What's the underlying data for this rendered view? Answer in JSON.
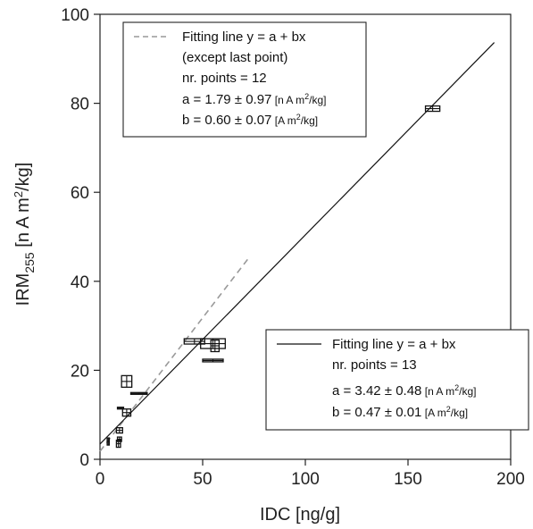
{
  "chart_data": {
    "type": "scatter",
    "xlabel": "IDC [ng/g]",
    "ylabel": {
      "prefix": "IRM",
      "sub": "255",
      "suffix_before_sup": " [n A m",
      "sup": "2",
      "suffix_after_sup": "/kg]"
    },
    "xlim": [
      0,
      200
    ],
    "ylim": [
      0,
      100
    ],
    "x_ticks": [
      0,
      50,
      100,
      150,
      200
    ],
    "y_ticks": [
      0,
      20,
      40,
      60,
      80,
      100
    ],
    "grid": false,
    "points": [
      {
        "x": 4,
        "y": 4,
        "xerr": 0.5,
        "yerr": 0.8
      },
      {
        "x": 9,
        "y": 3.5,
        "xerr": 1,
        "yerr": 0.8
      },
      {
        "x": 9.5,
        "y": 4.5,
        "xerr": 1,
        "yerr": 0.5
      },
      {
        "x": 9.5,
        "y": 6.5,
        "xerr": 1.5,
        "yerr": 0.6
      },
      {
        "x": 10,
        "y": 11.5,
        "xerr": 1.5,
        "yerr": 0.2
      },
      {
        "x": 13,
        "y": 10.5,
        "xerr": 2,
        "yerr": 0.8
      },
      {
        "x": 13,
        "y": 17.5,
        "xerr": 2.5,
        "yerr": 1.3
      },
      {
        "x": 19,
        "y": 14.8,
        "xerr": 4,
        "yerr": 0.2
      },
      {
        "x": 46,
        "y": 26.5,
        "xerr": 5,
        "yerr": 0.6
      },
      {
        "x": 55,
        "y": 26,
        "xerr": 6,
        "yerr": 1.1
      },
      {
        "x": 55,
        "y": 22.2,
        "xerr": 5,
        "yerr": 0.3
      },
      {
        "x": 56,
        "y": 25.5,
        "xerr": 2,
        "yerr": 1.3
      },
      {
        "x": 162,
        "y": 78.8,
        "xerr": 3.5,
        "yerr": 0.6
      }
    ],
    "fits": [
      {
        "name": "Fitting line y = a + bx (except last point)",
        "style": "dashed",
        "color": "#999999",
        "a": 1.79,
        "b": 0.6,
        "x_range": [
          0,
          73
        ]
      },
      {
        "name": "Fitting line y = a + bx",
        "style": "solid",
        "color": "#111111",
        "a": 3.42,
        "b": 0.47,
        "x_range": [
          0,
          192
        ]
      }
    ],
    "legend1": {
      "line1": "Fitting line y = a + bx",
      "line2": "(except last point)",
      "line3": "nr. points = 12",
      "a_text": "a = 1.79 ± 0.97",
      "a_unit_pre": " [n A m",
      "a_unit_sup": "2",
      "a_unit_post": "/kg]",
      "b_text": "b = 0.60 ± 0.07",
      "b_unit_pre": " [A m",
      "b_unit_sup": "2",
      "b_unit_post": "/kg]"
    },
    "legend2": {
      "line1": "Fitting line y = a + bx",
      "line2": "nr. points = 13",
      "a_text": "a = 3.42 ± 0.48",
      "a_unit_pre": " [n A m",
      "a_unit_sup": "2",
      "a_unit_post": "/kg]",
      "b_text": "b = 0.47 ± 0.01",
      "b_unit_pre": " [A m",
      "b_unit_sup": "2",
      "b_unit_post": "/kg]"
    }
  }
}
